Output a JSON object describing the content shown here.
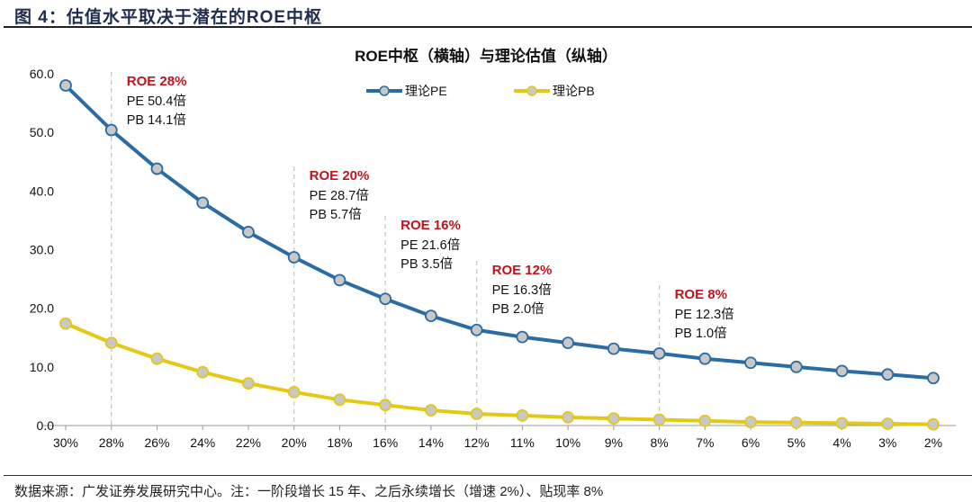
{
  "figure_title": "图 4：估值水平取决于潜在的ROE中枢",
  "source": "数据来源：广发证券发展研究中心。注：一阶段增长 15 年、之后永续增长（增速 2%）、贴现率 8%",
  "chart_data": {
    "type": "line",
    "title": "ROE中枢（横轴）与理论估值（纵轴）",
    "xlabel": "",
    "ylabel": "",
    "ylim": [
      0,
      60
    ],
    "yticks": [
      "0.0",
      "10.0",
      "20.0",
      "30.0",
      "40.0",
      "50.0",
      "60.0"
    ],
    "grid": false,
    "legend": "top-center",
    "categories": [
      "30%",
      "28%",
      "26%",
      "24%",
      "22%",
      "20%",
      "18%",
      "16%",
      "14%",
      "12%",
      "11%",
      "10%",
      "9%",
      "8%",
      "7%",
      "6%",
      "5%",
      "4%",
      "3%",
      "2%"
    ],
    "series": [
      {
        "name": "理论PE",
        "color": "#2a6ca3",
        "values": [
          58.0,
          50.4,
          43.8,
          38.0,
          33.0,
          28.7,
          24.8,
          21.6,
          18.7,
          16.3,
          15.1,
          14.1,
          13.1,
          12.3,
          11.4,
          10.7,
          10.0,
          9.3,
          8.7,
          8.1
        ]
      },
      {
        "name": "理论PB",
        "color": "#e5c814",
        "values": [
          17.4,
          14.1,
          11.4,
          9.1,
          7.2,
          5.7,
          4.4,
          3.5,
          2.6,
          2.0,
          1.7,
          1.4,
          1.2,
          1.0,
          0.8,
          0.6,
          0.5,
          0.4,
          0.3,
          0.2
        ]
      }
    ],
    "annotations": [
      {
        "category": "28%",
        "head": "ROE 28%",
        "pe": "PE 50.4倍",
        "pb": "PB 14.1倍"
      },
      {
        "category": "20%",
        "head": "ROE 20%",
        "pe": "PE 28.7倍",
        "pb": "PB 5.7倍"
      },
      {
        "category": "16%",
        "head": "ROE 16%",
        "pe": "PE 21.6倍",
        "pb": "PB 3.5倍"
      },
      {
        "category": "12%",
        "head": "ROE 12%",
        "pe": "PE 16.3倍",
        "pb": "PB 2.0倍"
      },
      {
        "category": "8%",
        "head": "ROE 8%",
        "pe": "PE 12.3倍",
        "pb": "PB 1.0倍"
      }
    ],
    "annotation_color": "#c0141c",
    "marker_fill": "#c8c8c8"
  }
}
